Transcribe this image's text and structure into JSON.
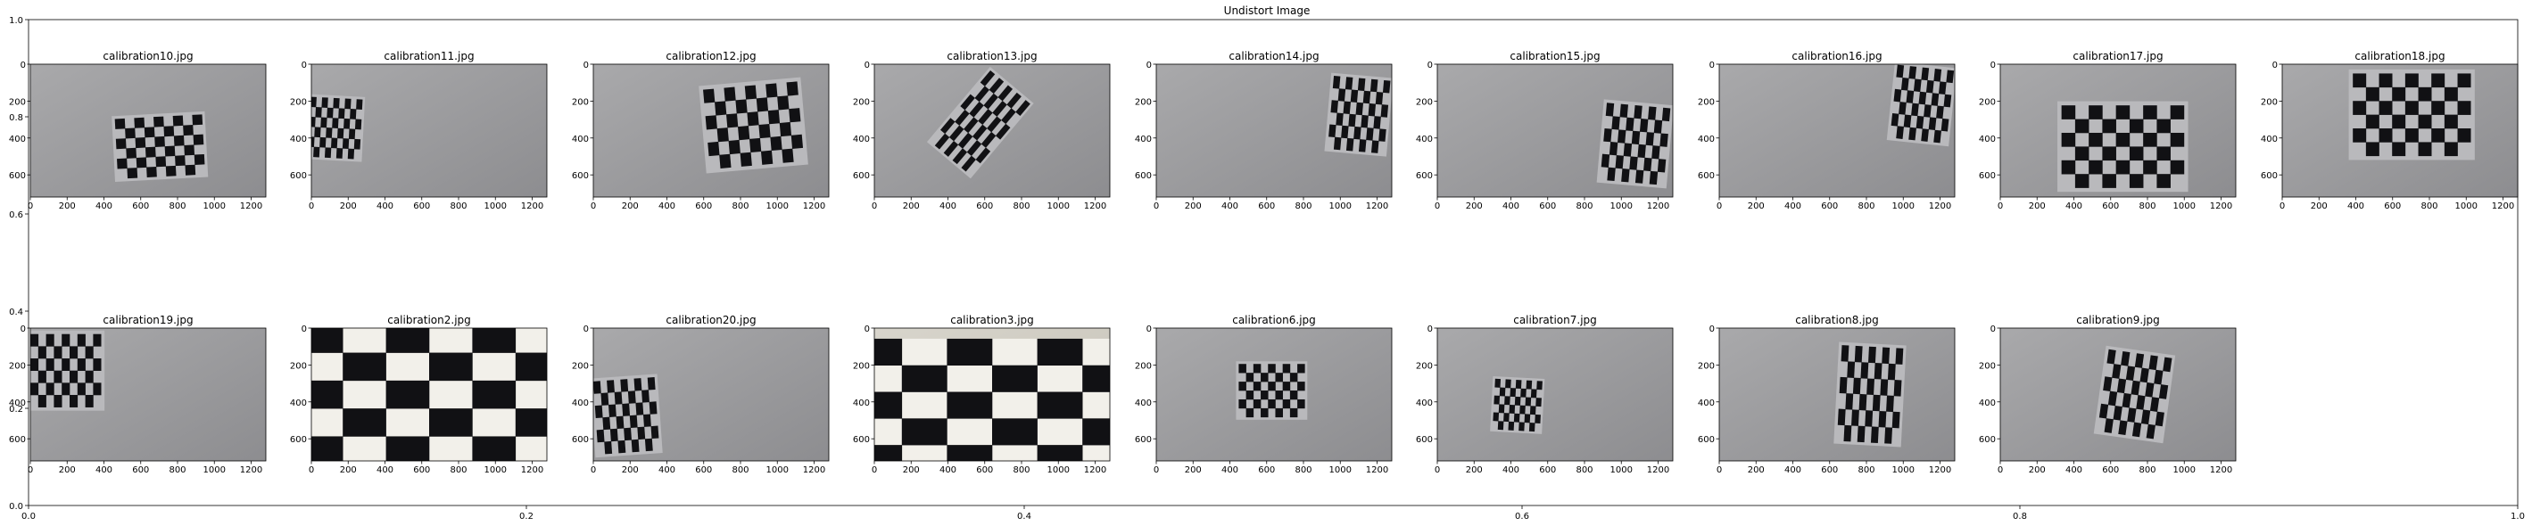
{
  "chart_data": {
    "type": "image_grid",
    "title": "Undistort Image",
    "outer_axes": {
      "xlim": [
        0.0,
        1.0
      ],
      "ylim": [
        0.0,
        1.0
      ],
      "xticks": [
        "0.0",
        "0.2",
        "0.4",
        "0.6",
        "0.8",
        "1.0"
      ],
      "yticks": [
        "0.0",
        "0.2",
        "0.4",
        "0.6",
        "0.8",
        "1.0"
      ]
    },
    "panel_axes": {
      "xlim": [
        0,
        1280
      ],
      "ylim": [
        720,
        0
      ],
      "xticks": [
        "0",
        "200",
        "400",
        "600",
        "800",
        "1000",
        "1200"
      ],
      "yticks": [
        "0",
        "200",
        "400",
        "600"
      ]
    },
    "grid": false,
    "legend": "none",
    "panels": [
      {
        "title": "calibration10.jpg",
        "board": "small",
        "cx": 0.55,
        "cy": 0.62,
        "w": 0.37,
        "h": 0.45,
        "rot": -3,
        "shear": 0
      },
      {
        "title": "calibration11.jpg",
        "board": "small",
        "cx": 0.1,
        "cy": 0.48,
        "w": 0.22,
        "h": 0.45,
        "rot": 3,
        "shear": 0
      },
      {
        "title": "calibration12.jpg",
        "board": "small",
        "cx": 0.68,
        "cy": 0.46,
        "w": 0.4,
        "h": 0.6,
        "rot": -5,
        "shear": 0
      },
      {
        "title": "calibration13.jpg",
        "board": "small",
        "cx": 0.45,
        "cy": 0.44,
        "w": 0.22,
        "h": 0.7,
        "rot": 40,
        "shear": 0
      },
      {
        "title": "calibration14.jpg",
        "board": "small",
        "cx": 0.86,
        "cy": 0.38,
        "w": 0.24,
        "h": 0.55,
        "rot": 5,
        "shear": 0
      },
      {
        "title": "calibration15.jpg",
        "board": "small",
        "cx": 0.84,
        "cy": 0.6,
        "w": 0.27,
        "h": 0.58,
        "rot": 5,
        "shear": 0
      },
      {
        "title": "calibration16.jpg",
        "board": "small",
        "cx": 0.86,
        "cy": 0.3,
        "w": 0.24,
        "h": 0.55,
        "rot": 6,
        "shear": 0
      },
      {
        "title": "calibration17.jpg",
        "board": "small",
        "cx": 0.52,
        "cy": 0.62,
        "w": 0.52,
        "h": 0.62,
        "rot": 0,
        "shear": 0
      },
      {
        "title": "calibration18.jpg",
        "board": "small",
        "cx": 0.55,
        "cy": 0.38,
        "w": 0.5,
        "h": 0.62,
        "rot": 0,
        "shear": 0
      },
      {
        "title": "calibration19.jpg",
        "board": "small",
        "cx": 0.15,
        "cy": 0.32,
        "w": 0.3,
        "h": 0.55,
        "rot": 0,
        "shear": 0
      },
      {
        "title": "calibration2.jpg",
        "board": "large",
        "cx": 0.5,
        "cy": 0.5,
        "w": 1.1,
        "h": 1.05,
        "rot": 0,
        "shear": 0
      },
      {
        "title": "calibration20.jpg",
        "board": "small",
        "cx": 0.14,
        "cy": 0.66,
        "w": 0.26,
        "h": 0.55,
        "rot": -4,
        "shear": 0
      },
      {
        "title": "calibration3.jpg",
        "board": "large",
        "cx": 0.5,
        "cy": 0.58,
        "w": 1.15,
        "h": 1.0,
        "rot": 0,
        "shear": 0
      },
      {
        "title": "calibration6.jpg",
        "board": "small",
        "cx": 0.49,
        "cy": 0.47,
        "w": 0.28,
        "h": 0.4,
        "rot": 0,
        "shear": 0
      },
      {
        "title": "calibration7.jpg",
        "board": "small",
        "cx": 0.34,
        "cy": 0.58,
        "w": 0.2,
        "h": 0.38,
        "rot": 3,
        "shear": 0
      },
      {
        "title": "calibration8.jpg",
        "board": "small",
        "cx": 0.64,
        "cy": 0.5,
        "w": 0.26,
        "h": 0.72,
        "rot": 3,
        "shear": 0
      },
      {
        "title": "calibration9.jpg",
        "board": "small",
        "cx": 0.57,
        "cy": 0.5,
        "w": 0.27,
        "h": 0.62,
        "rot": 8,
        "shear": 0
      }
    ]
  }
}
